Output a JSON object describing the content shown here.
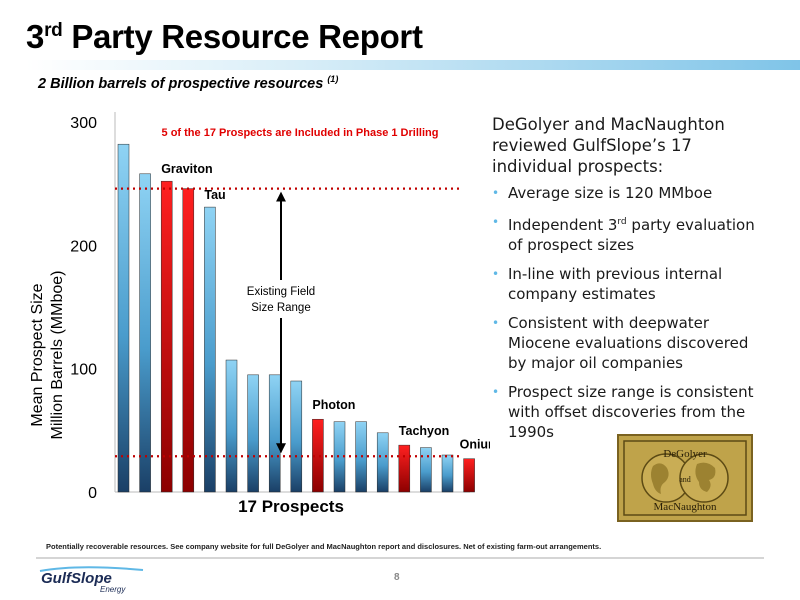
{
  "slide": {
    "title_main": "3",
    "title_sup": "rd",
    "title_rest": " Party Resource Report",
    "subtitle": "2 Billion barrels of prospective resources ",
    "subtitle_sup": "(1)",
    "footnote": "Potentially recoverable resources.  See company website for full DeGolyer and MacNaughton report and disclosures.  Net of existing farm-out arrangements.",
    "page_number": "8"
  },
  "right_panel": {
    "intro": "DeGolyer and MacNaughton reviewed GulfSlope’s 17 individual prospects:",
    "bullets": [
      {
        "text": "Average size is 120 MMboe"
      },
      {
        "pre": "Independent 3",
        "sup": "rd",
        "post": " party evaluation of prospect sizes"
      },
      {
        "text": "In-line with previous internal company estimates"
      },
      {
        "text": "Consistent with deepwater Miocene evaluations discovered by major oil companies"
      },
      {
        "text": "Prospect size range is consistent with offset discoveries from the 1990s"
      }
    ]
  },
  "logos": {
    "degolyer_line1": "DeGolyer",
    "degolyer_and": "and",
    "degolyer_line2": "MacNaughton",
    "gulfslope_name": "GulfSlope",
    "gulfslope_sub": "Energy"
  },
  "colors": {
    "blue_bar_top": "#8fd3f4",
    "blue_bar_bottom": "#1a3f66",
    "red_bar_top": "#ff2020",
    "red_bar_bottom": "#8c0000",
    "dotted_line": "#c00000",
    "callout_text": "#e00000",
    "bullet": "#5fb8e6",
    "gold": "#bfa34a"
  },
  "chart_data": {
    "type": "bar",
    "categories": [
      "",
      "",
      "",
      "",
      "",
      "",
      "",
      "",
      "",
      "",
      "",
      "",
      "",
      "",
      "",
      "",
      ""
    ],
    "values": [
      282,
      258,
      252,
      246,
      231,
      107,
      95,
      95,
      90,
      59,
      57,
      57,
      48,
      38,
      36,
      30,
      27
    ],
    "highlighted": [
      false,
      false,
      true,
      true,
      false,
      false,
      false,
      false,
      false,
      true,
      false,
      false,
      false,
      true,
      false,
      false,
      true
    ],
    "bar_labels": [
      {
        "index": 2,
        "text": "Graviton"
      },
      {
        "index": 4,
        "text": "Tau"
      },
      {
        "index": 9,
        "text": "Photon"
      },
      {
        "index": 13,
        "text": "Tachyon"
      },
      {
        "index": 16,
        "text": "Onium"
      }
    ],
    "xlabel": "17 Prospects",
    "ylabel_line1": "Mean Prospect Size",
    "ylabel_line2": "Million Barrels (MMboe)",
    "ylim": [
      0,
      300
    ],
    "yticks": [
      0,
      100,
      200,
      300
    ],
    "reference_lines": [
      246,
      29
    ],
    "range_annotation_line1": "Existing Field",
    "range_annotation_line2": "Size Range",
    "callout": "5 of the 17 Prospects are Included in Phase 1 Drilling",
    "grid": false
  }
}
